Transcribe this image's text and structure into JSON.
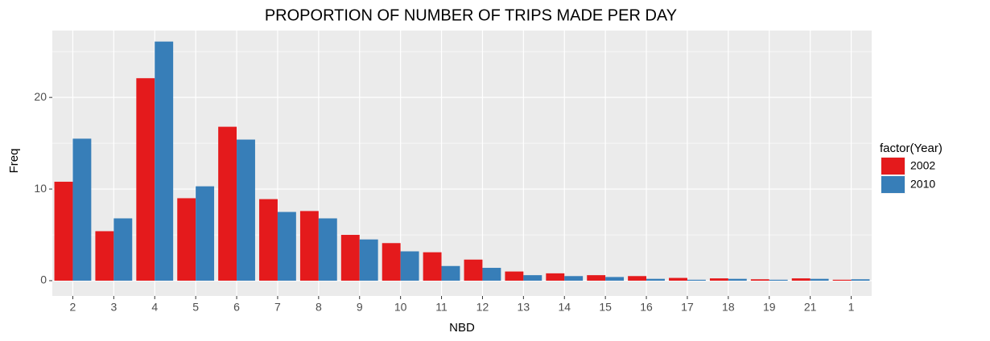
{
  "chart_data": {
    "type": "bar",
    "title": "PROPORTION OF NUMBER OF TRIPS MADE PER DAY",
    "x_label": "NBD",
    "y_label": "Freq",
    "legend_title": "factor(Year)",
    "legend": "right",
    "categories": [
      "2",
      "3",
      "4",
      "5",
      "6",
      "7",
      "8",
      "9",
      "10",
      "11",
      "12",
      "13",
      "14",
      "15",
      "16",
      "17",
      "18",
      "19",
      "21",
      "1"
    ],
    "series": [
      {
        "name": "2002",
        "color": "#e41a1c",
        "values": [
          10.8,
          5.4,
          22.1,
          9.0,
          16.8,
          8.9,
          7.6,
          5.0,
          4.1,
          3.1,
          2.3,
          1.0,
          0.8,
          0.6,
          0.5,
          0.3,
          0.25,
          0.15,
          0.25,
          0.1
        ]
      },
      {
        "name": "2010",
        "color": "#377eb8",
        "values": [
          15.5,
          6.8,
          26.1,
          10.3,
          15.4,
          7.5,
          6.8,
          4.5,
          3.2,
          1.6,
          1.4,
          0.6,
          0.5,
          0.4,
          0.2,
          0.1,
          0.2,
          0.1,
          0.2,
          0.15
        ]
      }
    ],
    "ylim": [
      -1.67,
      27.3
    ],
    "yticks": [
      0,
      10,
      20
    ],
    "yticks_minor": [
      5,
      15,
      25
    ],
    "grid": true
  }
}
